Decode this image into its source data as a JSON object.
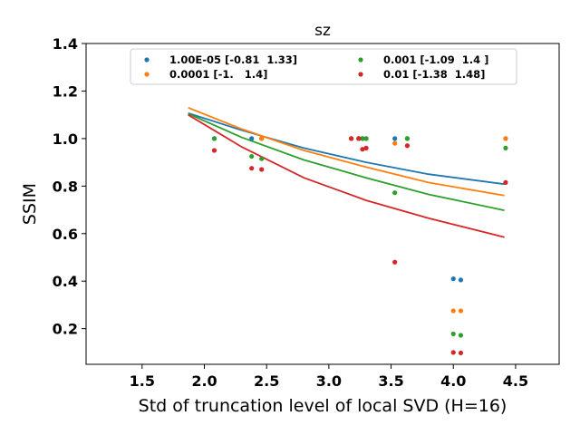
{
  "chart_data": {
    "type": "scatter",
    "title": "sz",
    "xlabel": "Std of truncation level of local SVD (H=16)",
    "ylabel": "SSIM",
    "xlim": [
      1.05,
      4.85
    ],
    "ylim": [
      0.05,
      1.4
    ],
    "xticks": [
      "1.5",
      "2.0",
      "2.5",
      "3.0",
      "3.5",
      "4.0",
      "4.5"
    ],
    "yticks": [
      "0.2",
      "0.4",
      "0.6",
      "0.8",
      "1.0",
      "1.2",
      "1.4"
    ],
    "legend_position": "top",
    "series": [
      {
        "name": "1.00E-05 [-0.81  1.33]",
        "color": "#1f77b4",
        "points": [
          [
            2.08,
            1.0
          ],
          [
            2.38,
            1.0
          ],
          [
            2.46,
            1.0
          ],
          [
            3.18,
            1.0
          ],
          [
            3.24,
            1.0
          ],
          [
            3.27,
            1.0
          ],
          [
            3.3,
            1.0
          ],
          [
            3.53,
            1.0
          ],
          [
            3.63,
            1.0
          ],
          [
            4.0,
            0.41
          ],
          [
            4.06,
            0.405
          ],
          [
            4.42,
            1.0
          ]
        ],
        "curve": [
          [
            1.87,
            1.107
          ],
          [
            2.3,
            1.035
          ],
          [
            2.8,
            0.96
          ],
          [
            3.3,
            0.9
          ],
          [
            3.8,
            0.85
          ],
          [
            4.41,
            0.808
          ]
        ]
      },
      {
        "name": "0.0001 [-1.   1.4]",
        "color": "#ff7f0e",
        "points": [
          [
            2.46,
            1.0
          ],
          [
            3.18,
            1.0
          ],
          [
            3.24,
            1.0
          ],
          [
            3.27,
            1.0
          ],
          [
            3.53,
            0.98
          ],
          [
            4.0,
            0.275
          ],
          [
            4.06,
            0.275
          ],
          [
            4.42,
            1.0
          ]
        ],
        "curve": [
          [
            1.87,
            1.13
          ],
          [
            2.3,
            1.04
          ],
          [
            2.8,
            0.95
          ],
          [
            3.3,
            0.88
          ],
          [
            3.8,
            0.815
          ],
          [
            4.41,
            0.76
          ]
        ]
      },
      {
        "name": "0.001 [-1.09  1.4 ]",
        "color": "#2ca02c",
        "points": [
          [
            2.08,
            1.0
          ],
          [
            2.38,
            0.925
          ],
          [
            2.46,
            0.915
          ],
          [
            3.24,
            1.0
          ],
          [
            3.27,
            1.0
          ],
          [
            3.3,
            1.0
          ],
          [
            3.53,
            0.772
          ],
          [
            3.63,
            1.0
          ],
          [
            4.0,
            0.178
          ],
          [
            4.06,
            0.172
          ],
          [
            4.42,
            0.96
          ]
        ],
        "curve": [
          [
            1.87,
            1.105
          ],
          [
            2.3,
            1.005
          ],
          [
            2.8,
            0.91
          ],
          [
            3.3,
            0.835
          ],
          [
            3.8,
            0.765
          ],
          [
            4.41,
            0.698
          ]
        ]
      },
      {
        "name": "0.01 [-1.38  1.48]",
        "color": "#d62728",
        "points": [
          [
            2.08,
            0.95
          ],
          [
            2.38,
            0.875
          ],
          [
            2.46,
            0.87
          ],
          [
            3.18,
            1.0
          ],
          [
            3.24,
            1.0
          ],
          [
            3.27,
            0.955
          ],
          [
            3.3,
            0.96
          ],
          [
            3.53,
            0.48
          ],
          [
            3.63,
            0.97
          ],
          [
            4.0,
            0.1
          ],
          [
            4.06,
            0.098
          ],
          [
            4.42,
            0.815
          ]
        ],
        "curve": [
          [
            1.87,
            1.1
          ],
          [
            2.3,
            0.965
          ],
          [
            2.8,
            0.835
          ],
          [
            3.3,
            0.74
          ],
          [
            3.8,
            0.665
          ],
          [
            4.41,
            0.585
          ]
        ]
      }
    ]
  }
}
